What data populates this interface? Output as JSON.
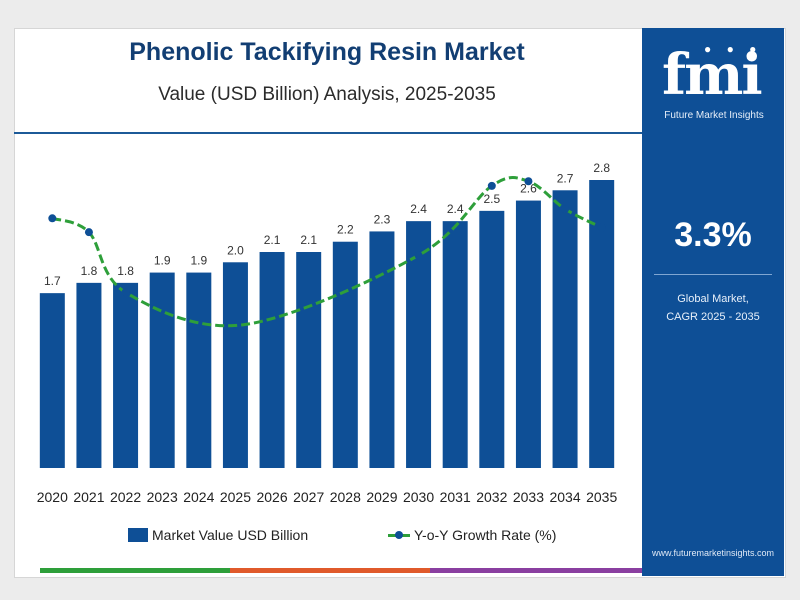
{
  "header": {
    "title": "Phenolic Tackifying Resin Market",
    "subtitle": "Value (USD Billion) Analysis, 2025-2035"
  },
  "sidebar": {
    "logo": "fmi",
    "logo_caption": "Future Market Insights",
    "cagr_value": "3.3%",
    "cagr_label_line1": "Global Market,",
    "cagr_label_line2": "CAGR 2025 - 2035",
    "website": "www.futuremarketinsights.com"
  },
  "legend": {
    "bar_label": "Market Value USD Billion",
    "line_label": "Y-o-Y Growth Rate (%)"
  },
  "colors": {
    "bar": "#0e4f96",
    "line": "#2e9f3a",
    "marker": "#0e4f96",
    "stripe": [
      "#2e9f3a",
      "#e05a2b",
      "#8a3fa0"
    ]
  },
  "chart_data": {
    "type": "bar",
    "categories": [
      "2020",
      "2021",
      "2022",
      "2023",
      "2024",
      "2025",
      "2026",
      "2027",
      "2028",
      "2029",
      "2030",
      "2031",
      "2032",
      "2033",
      "2034",
      "2035"
    ],
    "series": [
      {
        "name": "Market Value USD Billion",
        "type": "bar",
        "values": [
          1.7,
          1.8,
          1.8,
          1.9,
          1.9,
          2.0,
          2.1,
          2.1,
          2.2,
          2.3,
          2.4,
          2.4,
          2.5,
          2.6,
          2.7,
          2.8
        ]
      },
      {
        "name": "Y-o-Y Growth Rate (%)",
        "type": "line",
        "values": [
          4.5,
          4.2,
          2.9,
          null,
          null,
          null,
          null,
          null,
          null,
          null,
          3.7,
          null,
          5.2,
          5.3,
          4.7,
          4.3
        ]
      }
    ],
    "title": "Phenolic Tackifying Resin Market",
    "xlabel": "",
    "ylabel": "",
    "grid": false,
    "legend_position": "bottom"
  }
}
